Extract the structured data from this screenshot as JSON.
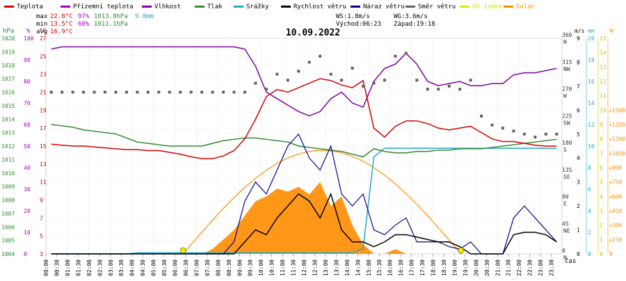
{
  "legend": [
    {
      "label": "Teplota",
      "color": "#d40000"
    },
    {
      "label": "Přízemní teplota",
      "color": "#a000c8"
    },
    {
      "label": "Vlhkost",
      "color": "#8000a0"
    },
    {
      "label": "Tlak",
      "color": "#2e8b2e"
    },
    {
      "label": "Srážky",
      "color": "#1fa8c8"
    },
    {
      "label": "Rychlost větru",
      "color": "#000000"
    },
    {
      "label": "Náraz větru",
      "color": "#00008b"
    },
    {
      "label": "Směr větru",
      "color": "#606060"
    },
    {
      "label": "UV index",
      "color": "#e8e800"
    },
    {
      "label": "Solar",
      "color": "#ff8c00"
    }
  ],
  "stats": {
    "max_label": "max",
    "max_temp": "22.8°C",
    "max_hum": "97%",
    "max_press": "1013.8hPa",
    "max_rain": "9.8mm",
    "min_label": "min",
    "min_temp": "13.5°C",
    "min_hum": "60%",
    "min_press": "1011.1hPa",
    "avg_label": "avg",
    "avg_temp": "16.9°C"
  },
  "wind_info": {
    "ws": "WS:1.8m/s",
    "wg": "WG:3.6m/s",
    "sunrise": "Východ:06:23",
    "sunset": "Západ:19:18"
  },
  "date": "10.09.2022",
  "time_label": "čas",
  "axes": {
    "hpa": {
      "unit": "hPa",
      "color": "#2e8b2e",
      "ticks": [
        "1004",
        "1005",
        "1006",
        "1007",
        "1008",
        "1009",
        "1010",
        "1011",
        "1012",
        "1013",
        "1014",
        "1015",
        "1016",
        "1017",
        "1018",
        "1019",
        "1020"
      ]
    },
    "pct": {
      "unit": "%",
      "color": "#a000c8",
      "ticks": [
        "0",
        "10",
        "20",
        "30",
        "40",
        "50",
        "60",
        "70",
        "80",
        "90",
        "100"
      ]
    },
    "degc": {
      "unit": "°C",
      "color": "#d40000",
      "ticks": [
        "3",
        "5",
        "7",
        "9",
        "11",
        "13",
        "15",
        "17",
        "19",
        "21",
        "23",
        "25",
        "27"
      ]
    },
    "dir": {
      "ticks": [
        "0",
        "45",
        "90",
        "135",
        "180",
        "225",
        "270",
        "315",
        "360"
      ],
      "labels": [
        "N",
        "NE",
        "E",
        "SE",
        "S",
        "SW",
        "W",
        "NW",
        "N"
      ]
    },
    "ms": {
      "unit": "m/s",
      "ticks": [
        "0",
        "1",
        "2",
        "3",
        "4",
        "5",
        "6",
        "7",
        "8",
        "9"
      ]
    },
    "mm": {
      "unit": "mm",
      "color": "#1fa8c8",
      "ticks": [
        "0",
        "2",
        "4",
        "6",
        "8",
        "10",
        "12",
        "14",
        "16",
        "18",
        "20"
      ]
    },
    "uv": {
      "ticks": [
        "0",
        "1",
        "2",
        "3",
        "4",
        "5",
        "6",
        "7",
        "8",
        "9",
        "10",
        "11",
        "12",
        "13",
        "14",
        "15"
      ],
      "color": "#c8c800"
    },
    "w": {
      "unit": "W",
      "color": "#ff8c00",
      "ticks": [
        "0",
        "150",
        "300",
        "450",
        "600",
        "750",
        "900",
        "1050",
        "1200",
        "1350",
        "1500"
      ]
    }
  },
  "chart_data": {
    "type": "line",
    "title": "10.09.2022",
    "x_categories": [
      "00:00",
      "00:30",
      "01:00",
      "01:30",
      "02:00",
      "02:30",
      "03:00",
      "03:30",
      "04:00",
      "04:30",
      "05:00",
      "05:30",
      "06:00",
      "06:30",
      "07:00",
      "07:30",
      "08:00",
      "08:30",
      "09:00",
      "09:30",
      "10:00",
      "10:30",
      "11:00",
      "11:30",
      "12:00",
      "12:30",
      "13:00",
      "13:30",
      "14:00",
      "14:30",
      "15:00",
      "15:30",
      "16:00",
      "16:30",
      "17:00",
      "17:30",
      "18:00",
      "18:30",
      "19:00",
      "19:30",
      "20:00",
      "20:30",
      "21:00",
      "21:30",
      "22:00",
      "22:30",
      "23:00",
      "23:30"
    ],
    "series": [
      {
        "name": "Teplota",
        "unit": "°C",
        "color": "#d40000",
        "values": [
          15.2,
          15.1,
          15.0,
          15.0,
          14.9,
          14.8,
          14.7,
          14.6,
          14.6,
          14.5,
          14.5,
          14.3,
          14.1,
          13.8,
          13.6,
          13.6,
          13.9,
          14.5,
          15.8,
          18.0,
          20.5,
          21.3,
          21.0,
          21.5,
          22.0,
          22.5,
          22.3,
          21.8,
          21.5,
          22.3,
          17.0,
          16.0,
          17.2,
          17.8,
          17.8,
          17.5,
          17.0,
          16.8,
          17.0,
          17.2,
          16.5,
          15.8,
          15.5,
          15.5,
          15.3,
          15.1,
          15.0,
          15.0
        ]
      },
      {
        "name": "Vlhkost",
        "unit": "%",
        "color": "#8000a0",
        "values": [
          95,
          96,
          96,
          96,
          96,
          96,
          96,
          96,
          96,
          96,
          96,
          96,
          96,
          96,
          96,
          96,
          96,
          96,
          95,
          87,
          75,
          72,
          69,
          66,
          64,
          66,
          72,
          75,
          70,
          68,
          80,
          86,
          88,
          93,
          88,
          80,
          78,
          79,
          80,
          78,
          78,
          79,
          79,
          83,
          84,
          84,
          85,
          86
        ]
      },
      {
        "name": "Tlak",
        "unit": "hPa",
        "color": "#2e8b2e",
        "values": [
          1013.6,
          1013.5,
          1013.4,
          1013.2,
          1013.1,
          1013.0,
          1012.9,
          1012.6,
          1012.3,
          1012.2,
          1012.1,
          1012.0,
          1012.0,
          1012.0,
          1012.0,
          1012.2,
          1012.4,
          1012.5,
          1012.6,
          1012.6,
          1012.5,
          1012.4,
          1012.3,
          1012.0,
          1011.9,
          1011.8,
          1011.7,
          1011.6,
          1011.4,
          1011.2,
          1011.8,
          1011.6,
          1011.5,
          1011.5,
          1011.6,
          1011.6,
          1011.7,
          1011.7,
          1011.8,
          1011.8,
          1011.8,
          1011.9,
          1012.0,
          1012.1,
          1012.2,
          1012.3,
          1012.4,
          1012.5
        ]
      },
      {
        "name": "Srážky",
        "unit": "mm",
        "color": "#1fa8c8",
        "values": [
          0,
          0,
          0,
          0,
          0,
          0,
          0,
          0,
          0.1,
          0.1,
          0.1,
          0.1,
          0.1,
          0.1,
          0.1,
          0.1,
          0.1,
          0.1,
          0.1,
          0.1,
          0.1,
          0.1,
          0.1,
          0.1,
          0.1,
          0.1,
          0.1,
          0.1,
          0.1,
          0.5,
          9.0,
          9.8,
          9.8,
          9.8,
          9.8,
          9.8,
          9.8,
          9.8,
          9.8,
          9.8,
          9.8,
          9.8,
          9.8,
          9.8,
          9.8,
          9.8,
          9.8,
          9.8
        ]
      },
      {
        "name": "Rychlost větru",
        "unit": "m/s",
        "color": "#000000",
        "values": [
          0,
          0,
          0,
          0,
          0,
          0,
          0,
          0,
          0,
          0,
          0,
          0,
          0,
          0,
          0,
          0,
          0,
          0,
          0.5,
          1.0,
          0.8,
          1.5,
          2.0,
          2.5,
          2.2,
          1.5,
          2.5,
          1.0,
          0.5,
          0.5,
          0.3,
          0.5,
          0.8,
          0.8,
          0.7,
          0.6,
          0.5,
          0.5,
          0.3,
          0,
          0,
          0,
          0,
          0.8,
          0.9,
          0.9,
          0.8,
          0.5
        ]
      },
      {
        "name": "Náraz větru",
        "unit": "m/s",
        "color": "#00008b",
        "values": [
          0,
          0,
          0,
          0,
          0,
          0,
          0,
          0,
          0,
          0,
          0,
          0,
          0,
          0,
          0,
          0,
          0,
          0.5,
          2.2,
          3.0,
          2.5,
          3.5,
          4.5,
          5.0,
          4.0,
          3.5,
          4.5,
          2.5,
          2.0,
          2.5,
          1.0,
          0.8,
          1.2,
          1.5,
          0.5,
          0.5,
          0.5,
          0.3,
          0.2,
          0.5,
          0,
          0,
          0,
          1.5,
          2.0,
          1.5,
          1.0,
          0.5
        ]
      },
      {
        "name": "Směr větru",
        "unit": "°",
        "color": "#606060",
        "values": [
          270,
          270,
          270,
          270,
          270,
          270,
          270,
          270,
          270,
          270,
          270,
          270,
          270,
          270,
          270,
          270,
          270,
          270,
          270,
          285,
          275,
          300,
          290,
          305,
          320,
          330,
          300,
          290,
          310,
          280,
          285,
          290,
          330,
          335,
          290,
          275,
          275,
          280,
          275,
          290,
          230,
          215,
          210,
          205,
          200,
          195,
          200,
          200
        ]
      },
      {
        "name": "Solar",
        "unit": "W",
        "color": "#ff8c00",
        "values": [
          0,
          0,
          0,
          0,
          0,
          0,
          0,
          0,
          0,
          0,
          0,
          0,
          0,
          0,
          0,
          50,
          150,
          250,
          400,
          550,
          600,
          680,
          650,
          700,
          620,
          750,
          500,
          600,
          300,
          100,
          0,
          0,
          50,
          0,
          0,
          0,
          0,
          0,
          0,
          0,
          0,
          0,
          0,
          0,
          0,
          0,
          0,
          0
        ]
      },
      {
        "name": "UV index",
        "unit": "",
        "color": "#e8e800",
        "values": [
          0,
          0,
          0,
          0,
          0,
          0,
          0,
          0,
          0,
          0,
          0,
          0,
          0,
          0,
          0,
          0,
          0,
          0,
          0,
          0,
          0,
          0,
          0,
          0,
          0,
          0,
          0,
          0,
          0,
          0,
          0,
          0,
          0,
          0,
          0,
          0,
          0,
          0,
          0,
          0,
          0,
          0,
          0,
          0,
          0,
          0,
          0,
          0
        ]
      }
    ],
    "clear_sky_solar_max_W": 1080,
    "sunrise": "06:23",
    "sunset": "19:18"
  }
}
